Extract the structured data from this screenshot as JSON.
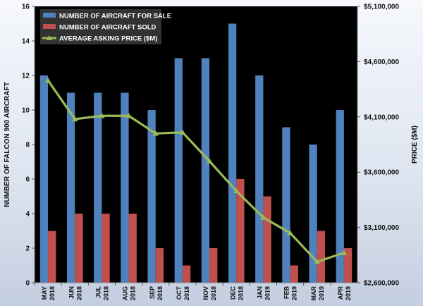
{
  "chart_data": {
    "type": "bar",
    "categories": [
      [
        "MAY",
        "2018"
      ],
      [
        "JUN",
        "2018"
      ],
      [
        "JUL",
        "2018"
      ],
      [
        "AUG",
        "2018"
      ],
      [
        "SEP",
        "2018"
      ],
      [
        "OCT",
        "2018"
      ],
      [
        "NOV",
        "2018"
      ],
      [
        "DEC",
        "2018"
      ],
      [
        "JAN",
        "2019"
      ],
      [
        "FEB",
        "2019"
      ],
      [
        "MAR",
        "2019"
      ],
      [
        "APR",
        "2019"
      ]
    ],
    "series": [
      {
        "name": "NUMBER OF AIRCRAFT FOR SALE",
        "kind": "bar",
        "axis": "left",
        "color": "#4f81bd",
        "values": [
          12,
          11,
          11,
          11,
          10,
          13,
          13,
          15,
          12,
          9,
          8,
          10
        ]
      },
      {
        "name": "NUMBER OF AIRCRAFT SOLD",
        "kind": "bar",
        "axis": "left",
        "color": "#c0504d",
        "values": [
          3,
          4,
          4,
          4,
          2,
          1,
          2,
          6,
          5,
          1,
          3,
          2
        ]
      },
      {
        "name": "AVERAGE ASKING PRICE ($M)",
        "kind": "line",
        "axis": "right",
        "color": "#9bbb59",
        "values": [
          4430000,
          4080000,
          4110000,
          4110000,
          3950000,
          3960000,
          3700000,
          3430000,
          3190000,
          3050000,
          2790000,
          2870000
        ]
      }
    ],
    "ylabel": "NUMBER OF FALCON 900 AIRCRAFT",
    "y2label": "PRICE ($M)",
    "ylim": [
      0,
      16
    ],
    "y2lim": [
      2600000,
      5100000
    ],
    "yticks": [
      "0",
      "2",
      "4",
      "6",
      "8",
      "10",
      "12",
      "14",
      "16"
    ],
    "y2ticks": [
      "$2,600,000",
      "$3,100,000",
      "$3,600,000",
      "$4,100,000",
      "$4,600,000",
      "$5,100,000"
    ],
    "grid": false,
    "legend": "top-left",
    "plot_background": "#000000"
  }
}
